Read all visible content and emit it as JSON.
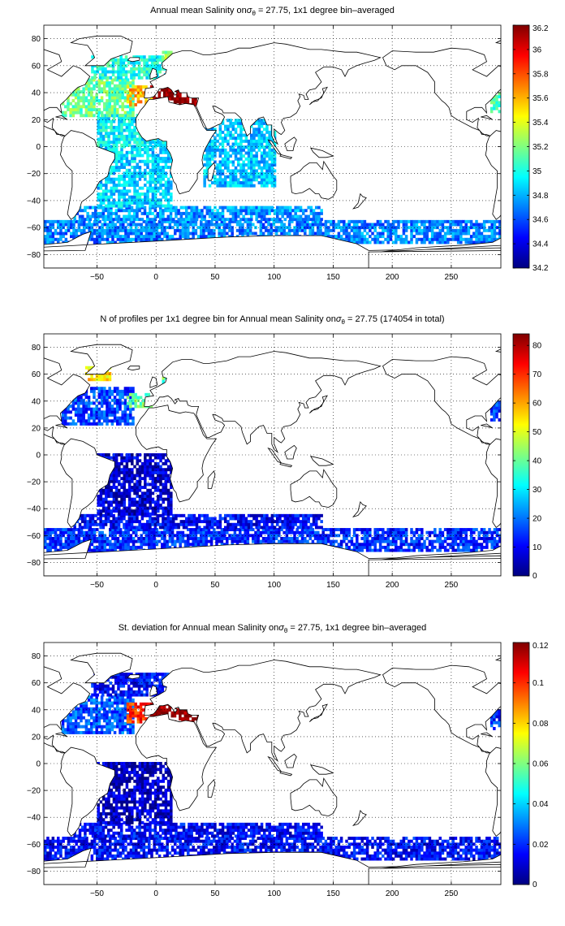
{
  "figure": {
    "background": "#ffffff"
  },
  "chart_data": [
    {
      "type": "heatmap",
      "title_parts": {
        "before": "Annual mean Salinity on",
        "sigma": "σ",
        "subscript": "θ",
        "after": " = 27.75, 1x1 degree bin–averaged"
      },
      "xlabel": "",
      "ylabel": "",
      "xlim": [
        -95,
        292
      ],
      "ylim": [
        -90,
        90
      ],
      "xticks": [
        -50,
        0,
        50,
        100,
        150,
        200,
        250
      ],
      "xtick_labels": [
        "−50",
        "0",
        "50",
        "100",
        "150",
        "200",
        "250"
      ],
      "yticks": [
        80,
        60,
        40,
        20,
        0,
        -20,
        -40,
        -60,
        -80
      ],
      "ytick_labels": [
        "80",
        "60",
        "40",
        "20",
        "0",
        "−20",
        "−40",
        "−60",
        "−80"
      ],
      "colorbar": {
        "min": 34.2,
        "max": 36.2,
        "ticks": [
          36.2,
          36,
          35.8,
          35.6,
          35.4,
          35.2,
          35,
          34.8,
          34.6,
          34.4,
          34.2
        ],
        "tick_labels": [
          "36.2",
          "36",
          "35.8",
          "35.6",
          "35.4",
          "35.2",
          "35",
          "34.8",
          "34.6",
          "34.4",
          "34.2"
        ]
      },
      "colormap": "jet",
      "background_value": 34.85,
      "regions": [
        {
          "lon": [
            -95,
            292
          ],
          "lat": [
            -72,
            -55
          ],
          "value": 34.7
        },
        {
          "lon": [
            -70,
            140
          ],
          "lat": [
            -55,
            -45
          ],
          "value": 34.74
        },
        {
          "lon": [
            -50,
            12
          ],
          "lat": [
            -45,
            0
          ],
          "value": 34.87
        },
        {
          "lon": [
            -50,
            20
          ],
          "lat": [
            0,
            22
          ],
          "value": 34.95
        },
        {
          "lon": [
            -80,
            -20
          ],
          "lat": [
            22,
            50
          ],
          "value": 35.15
        },
        {
          "lon": [
            -25,
            -5
          ],
          "lat": [
            30,
            45
          ],
          "value": 35.6
        },
        {
          "lon": [
            -5,
            36
          ],
          "lat": [
            30,
            45
          ],
          "value": 36.2
        },
        {
          "lon": [
            -55,
            10
          ],
          "lat": [
            50,
            66
          ],
          "value": 35.0
        },
        {
          "lon": [
            5,
            12
          ],
          "lat": [
            60,
            70
          ],
          "value": 35.25
        },
        {
          "lon": [
            40,
            100
          ],
          "lat": [
            -30,
            20
          ],
          "value": 34.84
        },
        {
          "lon": [
            283,
            292
          ],
          "lat": [
            25,
            40
          ],
          "value": 35.05
        }
      ]
    },
    {
      "type": "heatmap",
      "title_parts": {
        "before": "N of profiles per 1x1 degree bin for Annual mean Salinity on",
        "sigma": "σ",
        "subscript": "θ",
        "after": " = 27.75 (174054 in total)"
      },
      "xlabel": "",
      "ylabel": "",
      "xlim": [
        -95,
        292
      ],
      "ylim": [
        -90,
        90
      ],
      "xticks": [
        -50,
        0,
        50,
        100,
        150,
        200,
        250
      ],
      "xtick_labels": [
        "−50",
        "0",
        "50",
        "100",
        "150",
        "200",
        "250"
      ],
      "yticks": [
        80,
        60,
        40,
        20,
        0,
        -20,
        -40,
        -60,
        -80
      ],
      "ytick_labels": [
        "80",
        "60",
        "40",
        "20",
        "0",
        "−20",
        "−40",
        "−60",
        "−80"
      ],
      "colorbar": {
        "min": 0,
        "max": 84,
        "ticks": [
          80,
          70,
          60,
          50,
          40,
          30,
          20,
          10,
          0
        ],
        "tick_labels": [
          "80",
          "70",
          "60",
          "50",
          "40",
          "30",
          "20",
          "10",
          "0"
        ]
      },
      "colormap": "jet",
      "background_value": 8,
      "regions": [
        {
          "lon": [
            -95,
            292
          ],
          "lat": [
            -72,
            -55
          ],
          "value": 14
        },
        {
          "lon": [
            -70,
            140
          ],
          "lat": [
            -55,
            -45
          ],
          "value": 10
        },
        {
          "lon": [
            -50,
            12
          ],
          "lat": [
            -45,
            0
          ],
          "value": 7
        },
        {
          "lon": [
            -80,
            -20
          ],
          "lat": [
            22,
            50
          ],
          "value": 16
        },
        {
          "lon": [
            -25,
            -5
          ],
          "lat": [
            35,
            45
          ],
          "value": 40
        },
        {
          "lon": [
            -60,
            -40
          ],
          "lat": [
            55,
            64
          ],
          "value": 55
        },
        {
          "lon": [
            5,
            12
          ],
          "lat": [
            45,
            58
          ],
          "value": 40
        },
        {
          "lon": [
            283,
            292
          ],
          "lat": [
            25,
            40
          ],
          "value": 15
        }
      ]
    },
    {
      "type": "heatmap",
      "title_parts": {
        "before": "St. deviation for Annual mean Salinity on",
        "sigma": "σ",
        "subscript": "θ",
        "after": " = 27.75, 1x1 degree bin–averaged"
      },
      "xlabel": "",
      "ylabel": "",
      "xlim": [
        -95,
        292
      ],
      "ylim": [
        -90,
        90
      ],
      "xticks": [
        -50,
        0,
        50,
        100,
        150,
        200,
        250
      ],
      "xtick_labels": [
        "−50",
        "0",
        "50",
        "100",
        "150",
        "200",
        "250"
      ],
      "yticks": [
        80,
        60,
        40,
        20,
        0,
        -20,
        -40,
        -60,
        -80
      ],
      "ytick_labels": [
        "80",
        "60",
        "40",
        "20",
        "0",
        "−20",
        "−40",
        "−60",
        "−80"
      ],
      "colorbar": {
        "min": 0,
        "max": 0.12,
        "ticks": [
          0.12,
          0.1,
          0.08,
          0.06,
          0.04,
          0.02,
          0
        ],
        "tick_labels": [
          "0.12",
          "0.1",
          "0.08",
          "0.06",
          "0.04",
          "0.02",
          "0"
        ]
      },
      "colormap": "jet",
      "background_value": 0.01,
      "regions": [
        {
          "lon": [
            -95,
            292
          ],
          "lat": [
            -72,
            -55
          ],
          "value": 0.015
        },
        {
          "lon": [
            -70,
            140
          ],
          "lat": [
            -55,
            -45
          ],
          "value": 0.015
        },
        {
          "lon": [
            -50,
            12
          ],
          "lat": [
            -45,
            0
          ],
          "value": 0.008
        },
        {
          "lon": [
            -80,
            -20
          ],
          "lat": [
            22,
            50
          ],
          "value": 0.025
        },
        {
          "lon": [
            -25,
            -5
          ],
          "lat": [
            30,
            45
          ],
          "value": 0.1
        },
        {
          "lon": [
            -5,
            36
          ],
          "lat": [
            30,
            45
          ],
          "value": 0.12
        },
        {
          "lon": [
            -55,
            10
          ],
          "lat": [
            50,
            66
          ],
          "value": 0.015
        },
        {
          "lon": [
            283,
            292
          ],
          "lat": [
            25,
            40
          ],
          "value": 0.02
        }
      ]
    }
  ]
}
